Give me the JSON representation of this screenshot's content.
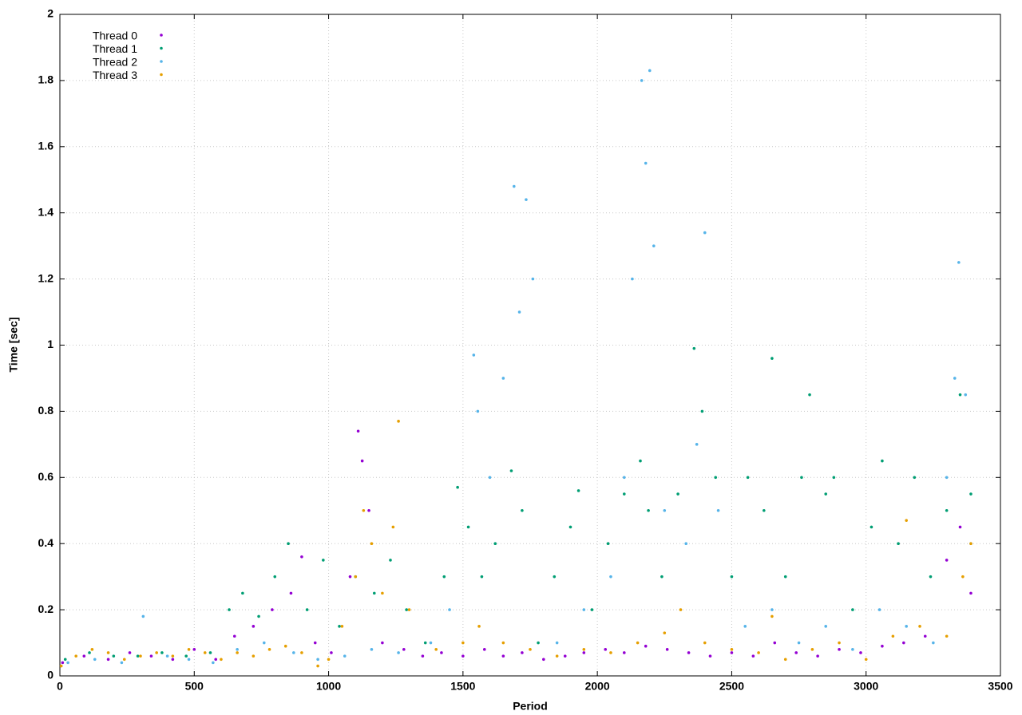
{
  "chart_data": {
    "type": "scatter",
    "xlabel": "Period",
    "ylabel": "Time [sec]",
    "xlim": [
      0,
      3500
    ],
    "ylim": [
      0,
      2
    ],
    "xticks": [
      0,
      500,
      1000,
      1500,
      2000,
      2500,
      3000,
      3500
    ],
    "yticks": [
      0,
      0.2,
      0.4,
      0.6,
      0.8,
      1,
      1.2,
      1.4,
      1.6,
      1.8,
      2
    ],
    "grid": true,
    "legend": "top-left",
    "series": [
      {
        "name": "Thread 0",
        "color": "#9400d3",
        "x": [
          10,
          90,
          180,
          260,
          340,
          420,
          500,
          580,
          650,
          720,
          790,
          860,
          900,
          950,
          1010,
          1080,
          1110,
          1125,
          1150,
          1200,
          1280,
          1350,
          1420,
          1500,
          1580,
          1650,
          1720,
          1800,
          1880,
          1950,
          2030,
          2100,
          2180,
          2260,
          2340,
          2420,
          2500,
          2580,
          2660,
          2740,
          2820,
          2900,
          2980,
          3060,
          3140,
          3220,
          3300,
          3350,
          3390
        ],
        "values": [
          0.04,
          0.06,
          0.05,
          0.07,
          0.06,
          0.05,
          0.08,
          0.05,
          0.12,
          0.15,
          0.2,
          0.25,
          0.36,
          0.1,
          0.07,
          0.3,
          0.74,
          0.65,
          0.5,
          0.1,
          0.08,
          0.06,
          0.07,
          0.06,
          0.08,
          0.06,
          0.07,
          0.05,
          0.06,
          0.07,
          0.08,
          0.07,
          0.09,
          0.08,
          0.07,
          0.06,
          0.07,
          0.06,
          0.1,
          0.07,
          0.06,
          0.08,
          0.07,
          0.09,
          0.1,
          0.12,
          0.35,
          0.45,
          0.25
        ]
      },
      {
        "name": "Thread 1",
        "color": "#009e73",
        "x": [
          20,
          110,
          200,
          290,
          380,
          470,
          560,
          630,
          680,
          740,
          800,
          850,
          920,
          980,
          1040,
          1100,
          1170,
          1230,
          1290,
          1360,
          1430,
          1480,
          1520,
          1570,
          1620,
          1680,
          1720,
          1780,
          1840,
          1900,
          1930,
          1980,
          2040,
          2100,
          2160,
          2190,
          2240,
          2300,
          2360,
          2390,
          2440,
          2500,
          2560,
          2620,
          2650,
          2700,
          2760,
          2790,
          2850,
          2880,
          2950,
          3020,
          3060,
          3120,
          3180,
          3240,
          3300,
          3350,
          3390
        ],
        "values": [
          0.05,
          0.07,
          0.06,
          0.06,
          0.07,
          0.06,
          0.07,
          0.2,
          0.25,
          0.18,
          0.3,
          0.4,
          0.2,
          0.35,
          0.15,
          0.3,
          0.25,
          0.35,
          0.2,
          0.1,
          0.3,
          0.57,
          0.45,
          0.3,
          0.4,
          0.62,
          0.5,
          0.1,
          0.3,
          0.45,
          0.56,
          0.2,
          0.4,
          0.55,
          0.65,
          0.5,
          0.3,
          0.55,
          0.99,
          0.8,
          0.6,
          0.3,
          0.6,
          0.5,
          0.96,
          0.3,
          0.6,
          0.85,
          0.55,
          0.6,
          0.2,
          0.45,
          0.65,
          0.4,
          0.6,
          0.3,
          0.5,
          0.85,
          0.55
        ]
      },
      {
        "name": "Thread 2",
        "color": "#56b4e9",
        "x": [
          30,
          130,
          230,
          310,
          400,
          480,
          570,
          660,
          760,
          870,
          960,
          1060,
          1160,
          1260,
          1380,
          1450,
          1540,
          1555,
          1600,
          1650,
          1690,
          1710,
          1735,
          1760,
          1850,
          1950,
          2050,
          2100,
          2130,
          2165,
          2180,
          2195,
          2210,
          2250,
          2330,
          2370,
          2400,
          2450,
          2550,
          2650,
          2750,
          2850,
          2950,
          3050,
          3150,
          3250,
          3300,
          3330,
          3345,
          3370,
          3390
        ],
        "values": [
          0.04,
          0.05,
          0.04,
          0.18,
          0.06,
          0.05,
          0.04,
          0.08,
          0.1,
          0.07,
          0.05,
          0.06,
          0.08,
          0.07,
          0.1,
          0.2,
          0.97,
          0.8,
          0.6,
          0.9,
          1.48,
          1.1,
          1.44,
          1.2,
          0.1,
          0.2,
          0.3,
          0.6,
          1.2,
          1.8,
          1.55,
          1.83,
          1.3,
          0.5,
          0.4,
          0.7,
          1.34,
          0.5,
          0.15,
          0.2,
          0.1,
          0.15,
          0.08,
          0.2,
          0.15,
          0.1,
          0.6,
          0.9,
          1.25,
          0.85,
          0.4
        ]
      },
      {
        "name": "Thread 3",
        "color": "#e69f00",
        "x": [
          5,
          60,
          120,
          180,
          240,
          300,
          360,
          420,
          480,
          540,
          600,
          660,
          720,
          780,
          840,
          900,
          960,
          1000,
          1050,
          1100,
          1130,
          1160,
          1200,
          1240,
          1260,
          1300,
          1400,
          1500,
          1560,
          1650,
          1750,
          1850,
          1950,
          2050,
          2150,
          2250,
          2310,
          2400,
          2500,
          2600,
          2650,
          2700,
          2800,
          2900,
          3000,
          3100,
          3150,
          3200,
          3300,
          3360,
          3390
        ],
        "values": [
          0.03,
          0.06,
          0.08,
          0.07,
          0.05,
          0.06,
          0.07,
          0.06,
          0.08,
          0.07,
          0.05,
          0.07,
          0.06,
          0.08,
          0.09,
          0.07,
          0.03,
          0.05,
          0.15,
          0.3,
          0.5,
          0.4,
          0.25,
          0.45,
          0.77,
          0.2,
          0.08,
          0.1,
          0.15,
          0.1,
          0.08,
          0.06,
          0.08,
          0.07,
          0.1,
          0.13,
          0.2,
          0.1,
          0.08,
          0.07,
          0.18,
          0.05,
          0.08,
          0.1,
          0.05,
          0.12,
          0.47,
          0.15,
          0.12,
          0.3,
          0.4
        ]
      }
    ]
  }
}
